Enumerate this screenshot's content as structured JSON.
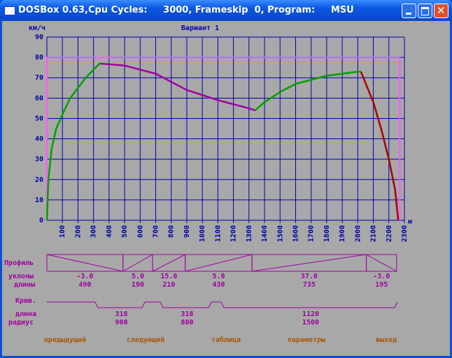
{
  "window": {
    "title": "DOSBox 0.63,Cpu Cycles:     3000, Frameskip  0, Program:     MSU"
  },
  "chart_data": {
    "type": "line",
    "title": "Вариант 1",
    "y_label": "км/ч",
    "x_label": "м",
    "xlim": [
      0,
      2300
    ],
    "ylim": [
      0,
      90
    ],
    "xticks": [
      100,
      200,
      300,
      400,
      500,
      600,
      700,
      800,
      900,
      1000,
      1100,
      1200,
      1300,
      1400,
      1500,
      1600,
      1700,
      1800,
      1900,
      2000,
      2100,
      2200,
      2300
    ],
    "yticks": [
      0,
      10,
      20,
      30,
      40,
      50,
      60,
      70,
      80,
      90
    ],
    "grid": true,
    "grid_color": "#0000a8",
    "series": [
      {
        "color": "#ff55ff",
        "x": [
          0,
          0,
          2270,
          2270
        ],
        "values": [
          0,
          80,
          80,
          0
        ]
      },
      {
        "color": "#00a000",
        "x": [
          0,
          10,
          30,
          60,
          100,
          150,
          200,
          250,
          300,
          340
        ],
        "values": [
          0,
          20,
          35,
          45,
          52,
          60,
          65,
          70,
          74,
          77
        ]
      },
      {
        "color": "#a000a0",
        "x": [
          340,
          500,
          700,
          900,
          1100,
          1300,
          1340
        ],
        "values": [
          77,
          76,
          72,
          64,
          59,
          55,
          54
        ]
      },
      {
        "color": "#00a000",
        "x": [
          1340,
          1400,
          1500,
          1600,
          1700,
          1800,
          1900,
          2000,
          2020
        ],
        "values": [
          54,
          58,
          63,
          67,
          69,
          71,
          72,
          73,
          73
        ]
      },
      {
        "color": "#a80000",
        "x": [
          2020,
          2100,
          2150,
          2200,
          2240,
          2260
        ],
        "values": [
          73,
          58,
          45,
          30,
          15,
          0
        ]
      }
    ]
  },
  "profile": {
    "label": "Профиль",
    "slopes_label": "уклоны",
    "lengths_label": "длины",
    "slopes": [
      "-3.0",
      "5.0",
      "15.0",
      "5.0",
      "37.0",
      "-3.0"
    ],
    "lengths": [
      490,
      190,
      210,
      430,
      735,
      195
    ]
  },
  "curves": {
    "label": "Крив.",
    "length_label": "длина",
    "radius_label": "радиус",
    "lengths": [
      318,
      318,
      1120
    ],
    "radii": [
      900,
      800,
      1500
    ]
  },
  "menu": [
    "предыдущий",
    "следующий",
    "таблица",
    "параметры",
    "выход"
  ]
}
